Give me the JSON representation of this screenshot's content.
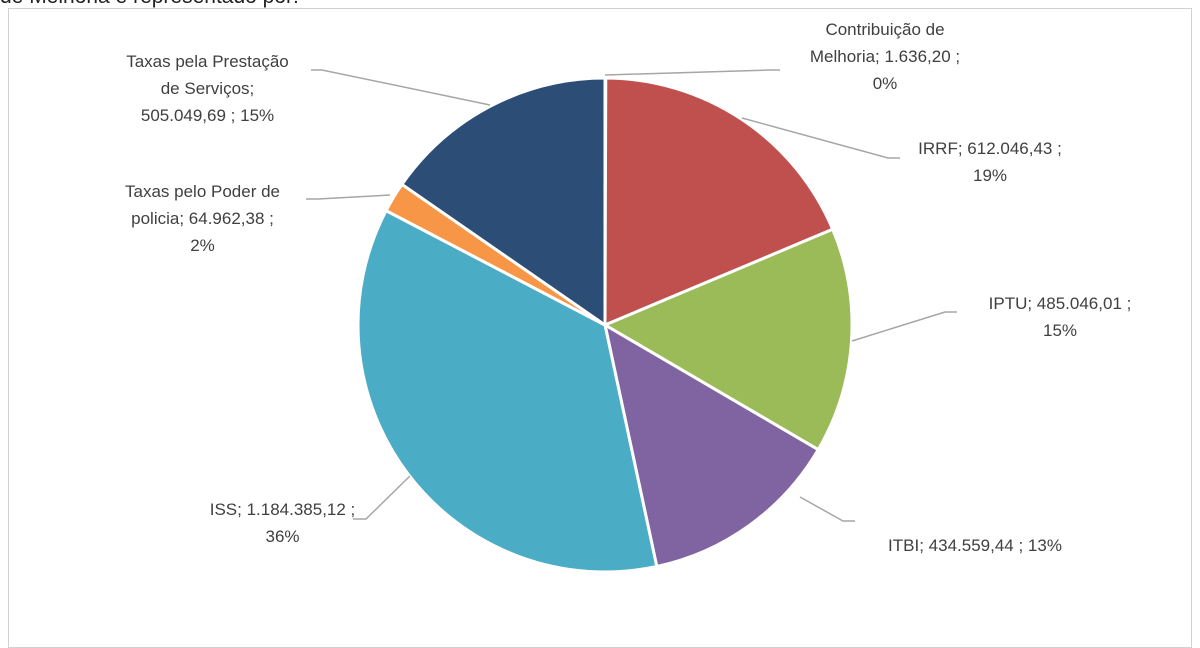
{
  "top_text": "de Melhoria é representado por:",
  "chart_data": {
    "type": "pie",
    "title": "",
    "slices": [
      {
        "label": "Contribuição de Melhoria",
        "value": 1636.2,
        "value_text": "1.636,20",
        "percent_text": "0%",
        "color": "#4f81bd"
      },
      {
        "label": "IRRF",
        "value": 612046.43,
        "value_text": "612.046,43",
        "percent_text": "19%",
        "color": "#c0504d"
      },
      {
        "label": "IPTU",
        "value": 485046.01,
        "value_text": "485.046,01",
        "percent_text": "15%",
        "color": "#9bbb59"
      },
      {
        "label": "ITBI",
        "value": 434559.44,
        "value_text": "434.559,44",
        "percent_text": "13%",
        "color": "#8064a2"
      },
      {
        "label": "ISS",
        "value": 1184385.12,
        "value_text": "1.184.385,12",
        "percent_text": "36%",
        "color": "#4bacc6"
      },
      {
        "label": "Taxas pelo Poder de policia",
        "value": 64962.38,
        "value_text": "64.962,38",
        "percent_text": "2%",
        "color": "#f79646"
      },
      {
        "label": "Taxas pela Prestação de Serviços",
        "value": 505049.69,
        "value_text": "505.049,69",
        "percent_text": "15%",
        "color": "#2c4d75"
      }
    ],
    "labels": [
      {
        "lines": [
          "Contribuição de",
          "Melhoria;  1.636,20 ;",
          "0%"
        ]
      },
      {
        "lines": [
          "IRRF;  612.046,43 ;",
          "19%"
        ]
      },
      {
        "lines": [
          "IPTU;  485.046,01 ;",
          "15%"
        ]
      },
      {
        "lines": [
          "ITBI;  434.559,44 ; 13%"
        ]
      },
      {
        "lines": [
          "ISS;  1.184.385,12 ;",
          "36%"
        ]
      },
      {
        "lines": [
          "Taxas pelo Poder de",
          "policia;  64.962,38 ;",
          "2%"
        ]
      },
      {
        "lines": [
          "Taxas pela Prestação",
          "de Serviços;",
          "505.049,69 ; 15%"
        ]
      }
    ]
  }
}
